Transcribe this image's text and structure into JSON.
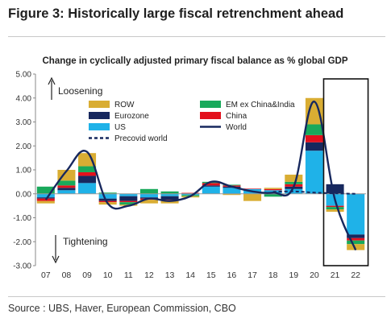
{
  "figure": {
    "title": "Figure 3: Historically large fiscal retrenchment ahead",
    "source": "Source : UBS, Haver, European Commission, CBO"
  },
  "chart_data": {
    "type": "bar",
    "subtitle": "Change in cyclically adjusted primary fiscal balance as % global GDP",
    "categories": [
      "07",
      "08",
      "09",
      "10",
      "11",
      "12",
      "13",
      "14",
      "15",
      "16",
      "17",
      "18",
      "19",
      "20",
      "21",
      "22"
    ],
    "ylim": [
      -3.0,
      5.0
    ],
    "yticks": [
      "5.00",
      "4.00",
      "3.00",
      "2.00",
      "1.00",
      "0.00",
      "-1.00",
      "-2.00",
      "-3.00"
    ],
    "yticks_values": [
      5,
      4,
      3,
      2,
      1,
      0,
      -1,
      -2,
      -3
    ],
    "stacked": true,
    "grid": false,
    "legend_position": "top-left",
    "series": [
      {
        "name": "US",
        "color": "#1fb2e8",
        "values": [
          -0.15,
          0.15,
          0.45,
          -0.2,
          -0.1,
          -0.15,
          -0.1,
          -0.05,
          0.3,
          0.25,
          0.2,
          0.15,
          0.2,
          1.8,
          -0.5,
          -1.7
        ]
      },
      {
        "name": "Eurozone",
        "color": "#17285e",
        "values": [
          -0.05,
          0.1,
          0.3,
          -0.1,
          -0.2,
          -0.05,
          -0.15,
          0.02,
          0.05,
          0.05,
          0.0,
          -0.02,
          0.1,
          0.35,
          0.4,
          -0.15
        ]
      },
      {
        "name": "China",
        "color": "#e3101c",
        "values": [
          -0.1,
          0.1,
          0.15,
          -0.05,
          -0.05,
          -0.05,
          -0.05,
          0.02,
          0.1,
          0.05,
          0.02,
          0.05,
          0.1,
          0.3,
          -0.05,
          -0.1
        ]
      },
      {
        "name": "EM ex China&India",
        "color": "#19a95b",
        "values": [
          0.3,
          0.2,
          0.25,
          0.05,
          -0.1,
          0.2,
          0.1,
          -0.05,
          0.05,
          0.03,
          0.0,
          -0.1,
          0.1,
          0.45,
          -0.1,
          -0.15
        ]
      },
      {
        "name": "ROW",
        "color": "#d9ad33",
        "values": [
          -0.1,
          0.45,
          0.55,
          -0.1,
          -0.05,
          -0.15,
          -0.1,
          -0.05,
          0.0,
          -0.05,
          -0.3,
          0.05,
          0.3,
          1.1,
          -0.1,
          -0.25
        ]
      }
    ],
    "lines": [
      {
        "name": "World",
        "color": "#17285e",
        "style": "solid",
        "values": [
          -0.25,
          0.95,
          1.75,
          -0.4,
          -0.5,
          -0.2,
          -0.3,
          -0.1,
          0.5,
          0.3,
          0.1,
          0.05,
          0.3,
          3.85,
          -0.25,
          -2.35
        ]
      },
      {
        "name": "Precovid world",
        "color": "#17285e",
        "style": "dashed",
        "values": [
          null,
          null,
          null,
          null,
          null,
          null,
          null,
          null,
          null,
          null,
          null,
          0.08,
          0.1,
          0.05,
          0.02,
          0.0
        ]
      }
    ],
    "legend_order": [
      "ROW",
      "EM ex China&India",
      "Eurozone",
      "China",
      "US",
      "World",
      "Precovid world"
    ],
    "annotations": [
      {
        "text": "Loosening",
        "direction": "up"
      },
      {
        "text": "Tightening",
        "direction": "down"
      }
    ],
    "highlight_box": {
      "from": "21",
      "to": "22"
    }
  }
}
